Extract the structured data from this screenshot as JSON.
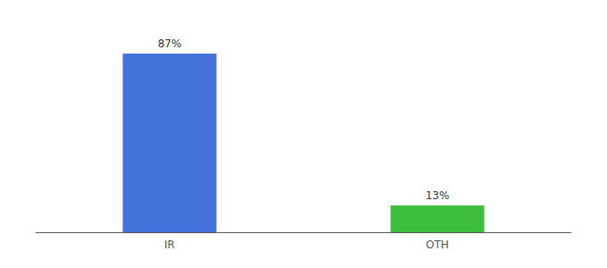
{
  "chart_data": {
    "type": "bar",
    "categories": [
      "IR",
      "OTH"
    ],
    "values": [
      87,
      13
    ],
    "value_labels": [
      "87%",
      "13%"
    ],
    "colors": [
      "#4472db",
      "#3dbf3d"
    ],
    "ylim": [
      0,
      100
    ],
    "data_labels": true,
    "tick_labels": "x",
    "grid": false
  }
}
